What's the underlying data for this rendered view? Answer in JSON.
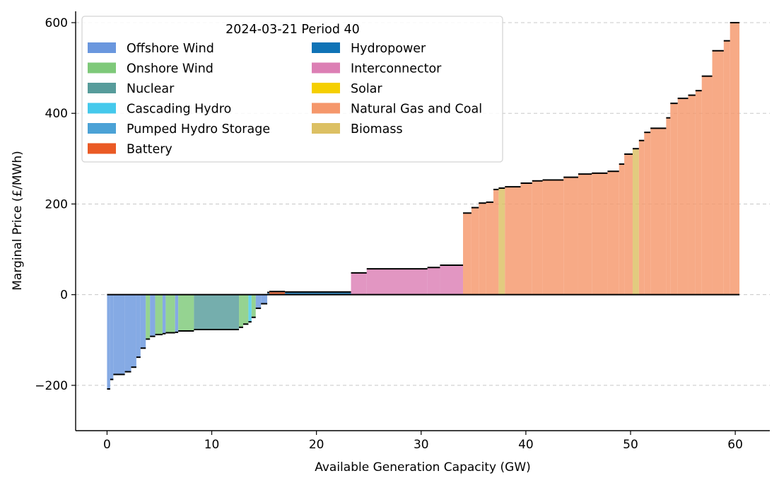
{
  "chart_data": {
    "type": "merit_order_step_area",
    "xlabel": "Available Generation Capacity (GW)",
    "ylabel": "Marginal Price (£/MWh)",
    "xlim": [
      -3,
      63.3
    ],
    "ylim": [
      -300,
      625
    ],
    "x_ticks": [
      0,
      10,
      20,
      30,
      40,
      50,
      60
    ],
    "y_ticks": [
      -200,
      0,
      200,
      400,
      600
    ],
    "y_tick_labels": [
      "−200",
      "0",
      "200",
      "400",
      "600"
    ],
    "grid": "y-dashed",
    "legend": {
      "title": "2024-03-21 Period 40",
      "placement": "top-left",
      "columns": 2,
      "entries": [
        {
          "name": "Offshore Wind",
          "color": "#6a97de"
        },
        {
          "name": "Onshore Wind",
          "color": "#7ec979"
        },
        {
          "name": "Nuclear",
          "color": "#579c9b"
        },
        {
          "name": "Cascading Hydro",
          "color": "#45c9ec"
        },
        {
          "name": "Pumped Hydro Storage",
          "color": "#4ba2d6"
        },
        {
          "name": "Battery",
          "color": "#ea5a25"
        },
        {
          "name": "Hydropower",
          "color": "#0f73b6"
        },
        {
          "name": "Interconnector",
          "color": "#dc7fb4"
        },
        {
          "name": "Solar",
          "color": "#f5cf00"
        },
        {
          "name": "Natural Gas and Coal",
          "color": "#f5976b"
        },
        {
          "name": "Biomass",
          "color": "#dcc063"
        }
      ]
    },
    "segments": [
      {
        "type": "Offshore Wind",
        "x0": 0.0,
        "x1": 0.3,
        "price": -208
      },
      {
        "type": "Offshore Wind",
        "x0": 0.3,
        "x1": 0.6,
        "price": -187
      },
      {
        "type": "Offshore Wind",
        "x0": 0.6,
        "x1": 1.7,
        "price": -176
      },
      {
        "type": "Offshore Wind",
        "x0": 1.7,
        "x1": 2.3,
        "price": -170
      },
      {
        "type": "Offshore Wind",
        "x0": 2.3,
        "x1": 2.8,
        "price": -160
      },
      {
        "type": "Offshore Wind",
        "x0": 2.8,
        "x1": 3.2,
        "price": -138
      },
      {
        "type": "Offshore Wind",
        "x0": 3.2,
        "x1": 3.7,
        "price": -118
      },
      {
        "type": "Onshore Wind",
        "x0": 3.7,
        "x1": 4.1,
        "price": -98
      },
      {
        "type": "Offshore Wind",
        "x0": 4.1,
        "x1": 4.6,
        "price": -92
      },
      {
        "type": "Onshore Wind",
        "x0": 4.6,
        "x1": 5.3,
        "price": -88
      },
      {
        "type": "Offshore Wind",
        "x0": 5.3,
        "x1": 5.6,
        "price": -86
      },
      {
        "type": "Onshore Wind",
        "x0": 5.6,
        "x1": 6.5,
        "price": -84
      },
      {
        "type": "Offshore Wind",
        "x0": 6.5,
        "x1": 6.8,
        "price": -83
      },
      {
        "type": "Onshore Wind",
        "x0": 6.8,
        "x1": 8.3,
        "price": -80
      },
      {
        "type": "Nuclear",
        "x0": 8.3,
        "x1": 12.6,
        "price": -77
      },
      {
        "type": "Onshore Wind",
        "x0": 12.6,
        "x1": 13.0,
        "price": -72
      },
      {
        "type": "Onshore Wind",
        "x0": 13.0,
        "x1": 13.5,
        "price": -65
      },
      {
        "type": "Cascading Hydro",
        "x0": 13.5,
        "x1": 13.8,
        "price": -60
      },
      {
        "type": "Onshore Wind",
        "x0": 13.8,
        "x1": 14.2,
        "price": -50
      },
      {
        "type": "Offshore Wind",
        "x0": 14.2,
        "x1": 14.7,
        "price": -30
      },
      {
        "type": "Offshore Wind",
        "x0": 14.7,
        "x1": 15.3,
        "price": -20
      },
      {
        "type": "Pumped Hydro Storage",
        "x0": 15.3,
        "x1": 15.5,
        "price": 5
      },
      {
        "type": "Battery",
        "x0": 15.5,
        "x1": 17.0,
        "price": 7
      },
      {
        "type": "Hydropower",
        "x0": 17.0,
        "x1": 23.3,
        "price": 6
      },
      {
        "type": "Interconnector",
        "x0": 23.3,
        "x1": 24.8,
        "price": 48
      },
      {
        "type": "Interconnector",
        "x0": 24.8,
        "x1": 30.6,
        "price": 57
      },
      {
        "type": "Interconnector",
        "x0": 30.6,
        "x1": 31.8,
        "price": 60
      },
      {
        "type": "Interconnector",
        "x0": 31.8,
        "x1": 34.0,
        "price": 65
      },
      {
        "type": "Natural Gas and Coal",
        "x0": 34.0,
        "x1": 34.8,
        "price": 180
      },
      {
        "type": "Natural Gas and Coal",
        "x0": 34.8,
        "x1": 35.5,
        "price": 192
      },
      {
        "type": "Natural Gas and Coal",
        "x0": 35.5,
        "x1": 36.2,
        "price": 202
      },
      {
        "type": "Natural Gas and Coal",
        "x0": 36.2,
        "x1": 36.9,
        "price": 204
      },
      {
        "type": "Natural Gas and Coal",
        "x0": 36.9,
        "x1": 37.4,
        "price": 232
      },
      {
        "type": "Biomass",
        "x0": 37.4,
        "x1": 38.0,
        "price": 235
      },
      {
        "type": "Natural Gas and Coal",
        "x0": 38.0,
        "x1": 39.5,
        "price": 238
      },
      {
        "type": "Natural Gas and Coal",
        "x0": 39.5,
        "x1": 40.6,
        "price": 246
      },
      {
        "type": "Natural Gas and Coal",
        "x0": 40.6,
        "x1": 41.6,
        "price": 251
      },
      {
        "type": "Natural Gas and Coal",
        "x0": 41.6,
        "x1": 43.6,
        "price": 253
      },
      {
        "type": "Natural Gas and Coal",
        "x0": 43.6,
        "x1": 45.0,
        "price": 259
      },
      {
        "type": "Natural Gas and Coal",
        "x0": 45.0,
        "x1": 46.3,
        "price": 266
      },
      {
        "type": "Natural Gas and Coal",
        "x0": 46.3,
        "x1": 47.8,
        "price": 268
      },
      {
        "type": "Natural Gas and Coal",
        "x0": 47.8,
        "x1": 48.9,
        "price": 272
      },
      {
        "type": "Natural Gas and Coal",
        "x0": 48.9,
        "x1": 49.4,
        "price": 288
      },
      {
        "type": "Natural Gas and Coal",
        "x0": 49.4,
        "x1": 50.2,
        "price": 310
      },
      {
        "type": "Biomass",
        "x0": 50.2,
        "x1": 50.8,
        "price": 322
      },
      {
        "type": "Natural Gas and Coal",
        "x0": 50.8,
        "x1": 51.3,
        "price": 340
      },
      {
        "type": "Natural Gas and Coal",
        "x0": 51.3,
        "x1": 51.9,
        "price": 358
      },
      {
        "type": "Natural Gas and Coal",
        "x0": 51.9,
        "x1": 53.4,
        "price": 367
      },
      {
        "type": "Natural Gas and Coal",
        "x0": 53.4,
        "x1": 53.8,
        "price": 390
      },
      {
        "type": "Natural Gas and Coal",
        "x0": 53.8,
        "x1": 54.5,
        "price": 422
      },
      {
        "type": "Natural Gas and Coal",
        "x0": 54.5,
        "x1": 55.5,
        "price": 433
      },
      {
        "type": "Natural Gas and Coal",
        "x0": 55.5,
        "x1": 56.2,
        "price": 440
      },
      {
        "type": "Natural Gas and Coal",
        "x0": 56.2,
        "x1": 56.8,
        "price": 450
      },
      {
        "type": "Natural Gas and Coal",
        "x0": 56.8,
        "x1": 57.8,
        "price": 482
      },
      {
        "type": "Natural Gas and Coal",
        "x0": 57.8,
        "x1": 58.9,
        "price": 538
      },
      {
        "type": "Natural Gas and Coal",
        "x0": 58.9,
        "x1": 59.5,
        "price": 560
      },
      {
        "type": "Natural Gas and Coal",
        "x0": 59.5,
        "x1": 60.4,
        "price": 600
      }
    ]
  }
}
